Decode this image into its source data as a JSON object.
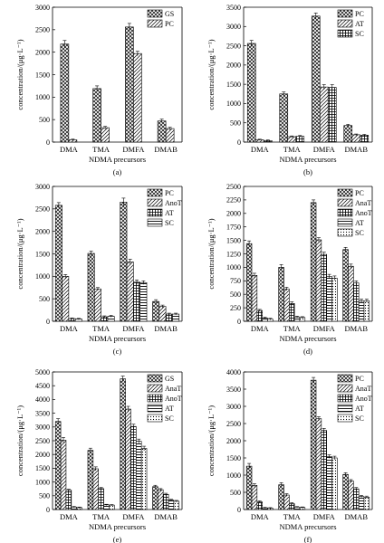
{
  "chart_data": [
    {
      "panel": "(a)",
      "type": "bar",
      "categories": [
        "DMA",
        "TMA",
        "DMFA",
        "DMAB"
      ],
      "xlabel": "NDMA precursors",
      "ylabel": "concentration/(μg·L⁻¹)",
      "ylim": [
        0,
        3000
      ],
      "yticks": [
        0,
        500,
        1000,
        1500,
        2000,
        2500,
        3000
      ],
      "legend_position": "top-right",
      "series": [
        {
          "name": "GS",
          "pattern": "crosshatch",
          "values": [
            2180,
            1190,
            2560,
            470
          ],
          "errors": [
            80,
            60,
            80,
            40
          ]
        },
        {
          "name": "PC",
          "pattern": "diagonal",
          "values": [
            50,
            320,
            1970,
            300
          ],
          "errors": [
            15,
            30,
            50,
            30
          ]
        }
      ]
    },
    {
      "panel": "(b)",
      "type": "bar",
      "categories": [
        "DMA",
        "TMA",
        "DMFA",
        "DMAB"
      ],
      "xlabel": "NDMA precursors",
      "ylabel": "concentration/(μg·L⁻¹)",
      "ylim": [
        0,
        3500
      ],
      "yticks": [
        0,
        500,
        1000,
        1500,
        2000,
        2500,
        3000,
        3500
      ],
      "legend_position": "top-right",
      "series": [
        {
          "name": "PC",
          "pattern": "crosshatch",
          "values": [
            2560,
            1250,
            3270,
            430
          ],
          "errors": [
            80,
            50,
            80,
            30
          ]
        },
        {
          "name": "AT",
          "pattern": "diagonal",
          "values": [
            60,
            140,
            1430,
            190
          ],
          "errors": [
            15,
            20,
            60,
            20
          ]
        },
        {
          "name": "SC",
          "pattern": "grid",
          "values": [
            40,
            150,
            1420,
            180
          ],
          "errors": [
            15,
            20,
            70,
            20
          ]
        }
      ]
    },
    {
      "panel": "(c)",
      "type": "bar",
      "categories": [
        "DMA",
        "TMA",
        "DMFA",
        "DMAB"
      ],
      "xlabel": "NDMA precursors",
      "ylabel": "concentration/(μg·L⁻¹)",
      "ylim": [
        0,
        3000
      ],
      "yticks": [
        0,
        500,
        1000,
        1500,
        2000,
        2500,
        3000
      ],
      "legend_position": "top-right",
      "series": [
        {
          "name": "PC",
          "pattern": "crosshatch",
          "values": [
            2580,
            1510,
            2650,
            440
          ],
          "errors": [
            60,
            50,
            90,
            40
          ]
        },
        {
          "name": "AnoT",
          "pattern": "diagonal",
          "values": [
            1000,
            720,
            1320,
            330
          ],
          "errors": [
            40,
            30,
            60,
            30
          ]
        },
        {
          "name": "AT",
          "pattern": "grid",
          "values": [
            60,
            100,
            870,
            160
          ],
          "errors": [
            15,
            20,
            50,
            20
          ]
        },
        {
          "name": "SC",
          "pattern": "horizontal",
          "values": [
            50,
            110,
            860,
            160
          ],
          "errors": [
            15,
            20,
            40,
            20
          ]
        }
      ]
    },
    {
      "panel": "(d)",
      "type": "bar",
      "categories": [
        "DMA",
        "TMA",
        "DMFA",
        "DMAB"
      ],
      "xlabel": "NDMA precursors",
      "ylabel": "concentration/(μg·L⁻¹)",
      "ylim": [
        0,
        2500
      ],
      "yticks": [
        0,
        250,
        500,
        750,
        1000,
        1250,
        1500,
        1750,
        2000,
        2250,
        2500
      ],
      "legend_position": "top-right",
      "series": [
        {
          "name": "PC",
          "pattern": "crosshatch",
          "values": [
            1440,
            1000,
            2200,
            1330
          ],
          "errors": [
            50,
            50,
            50,
            40
          ]
        },
        {
          "name": "AnaT",
          "pattern": "diagonal",
          "values": [
            850,
            600,
            1510,
            1020
          ],
          "errors": [
            40,
            30,
            40,
            40
          ]
        },
        {
          "name": "AnoT",
          "pattern": "grid",
          "values": [
            200,
            330,
            1240,
            710
          ],
          "errors": [
            20,
            30,
            40,
            40
          ]
        },
        {
          "name": "AT",
          "pattern": "horizontal",
          "values": [
            60,
            80,
            830,
            380
          ],
          "errors": [
            15,
            15,
            40,
            30
          ]
        },
        {
          "name": "SC",
          "pattern": "dots",
          "values": [
            40,
            70,
            800,
            380
          ],
          "errors": [
            15,
            15,
            40,
            30
          ]
        }
      ]
    },
    {
      "panel": "(e)",
      "type": "bar",
      "categories": [
        "DMA",
        "TMA",
        "DMFA",
        "DMAB"
      ],
      "xlabel": "NDMA precursors",
      "ylabel": "concentration/(μg·L⁻¹)",
      "ylim": [
        0,
        5000
      ],
      "yticks": [
        0,
        500,
        1000,
        1500,
        2000,
        2500,
        3000,
        3500,
        4000,
        4500,
        5000
      ],
      "legend_position": "top-right",
      "series": [
        {
          "name": "GS",
          "pattern": "crosshatch",
          "values": [
            3200,
            2150,
            4750,
            830
          ],
          "errors": [
            100,
            80,
            100,
            50
          ]
        },
        {
          "name": "AnaT",
          "pattern": "diagonal",
          "values": [
            2520,
            1480,
            3650,
            720
          ],
          "errors": [
            100,
            70,
            100,
            40
          ]
        },
        {
          "name": "AnoT",
          "pattern": "grid",
          "values": [
            700,
            760,
            3020,
            550
          ],
          "errors": [
            40,
            40,
            80,
            40
          ]
        },
        {
          "name": "AT",
          "pattern": "horizontal",
          "values": [
            90,
            170,
            2480,
            340
          ],
          "errors": [
            20,
            20,
            80,
            30
          ]
        },
        {
          "name": "SC",
          "pattern": "dots",
          "values": [
            70,
            160,
            2220,
            300
          ],
          "errors": [
            20,
            20,
            80,
            30
          ]
        }
      ]
    },
    {
      "panel": "(f)",
      "type": "bar",
      "categories": [
        "DMA",
        "TMA",
        "DMFA",
        "DMAB"
      ],
      "xlabel": "NDMA precursors",
      "ylabel": "concentration/(μg·L⁻¹)",
      "ylim": [
        0,
        4000
      ],
      "yticks": [
        0,
        500,
        1000,
        1500,
        2000,
        2500,
        3000,
        3500,
        4000
      ],
      "legend_position": "top-right",
      "series": [
        {
          "name": "PC",
          "pattern": "crosshatch",
          "values": [
            1260,
            720,
            3760,
            1020
          ],
          "errors": [
            80,
            60,
            80,
            50
          ]
        },
        {
          "name": "AnaT",
          "pattern": "diagonal",
          "values": [
            700,
            420,
            2640,
            830
          ],
          "errors": [
            50,
            40,
            60,
            40
          ]
        },
        {
          "name": "AnoT",
          "pattern": "grid",
          "values": [
            220,
            170,
            2300,
            600
          ],
          "errors": [
            30,
            30,
            60,
            40
          ]
        },
        {
          "name": "AT",
          "pattern": "horizontal",
          "values": [
            50,
            70,
            1540,
            380
          ],
          "errors": [
            15,
            15,
            50,
            30
          ]
        },
        {
          "name": "SC",
          "pattern": "dots",
          "values": [
            40,
            60,
            1500,
            360
          ],
          "errors": [
            15,
            15,
            50,
            30
          ]
        }
      ]
    }
  ]
}
